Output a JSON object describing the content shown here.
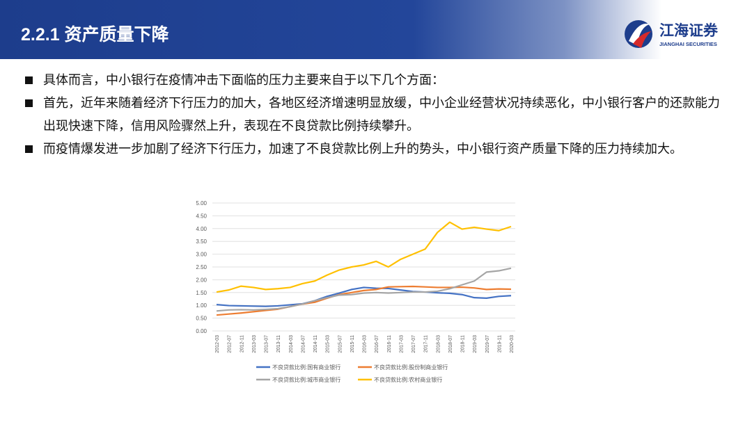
{
  "header": {
    "title": "2.2.1 资产质量下降",
    "logo_name": "江海证券",
    "logo_subtitle": "JIANGHAI SECURITIES"
  },
  "bullets": [
    "具体而言，中小银行在疫情冲击下面临的压力主要来自于以下几个方面：",
    "首先，近年来随着经济下行压力的加大，各地区经济增速明显放缓，中小企业经营状况持续恶化，中小银行客户的还款能力出现快速下降，信用风险骤然上升，表现在不良贷款比例持续攀升。",
    "而疫情爆发进一步加剧了经济下行压力，加速了不良贷款比例上升的势头，中小银行资产质量下降的压力持续加大。"
  ],
  "chart_data": {
    "type": "line",
    "categories": [
      "2012-03",
      "2012-07",
      "2012-11",
      "2013-03",
      "2013-07",
      "2013-11",
      "2014-03",
      "2014-07",
      "2014-11",
      "2015-03",
      "2015-07",
      "2015-11",
      "2016-03",
      "2016-07",
      "2016-11",
      "2017-03",
      "2017-07",
      "2017-11",
      "2018-03",
      "2018-07",
      "2018-11",
      "2019-03",
      "2019-07",
      "2019-11",
      "2020-03"
    ],
    "series": [
      {
        "name": "不良贷款比例:国有商业银行",
        "color": "#4472c4",
        "values": [
          1.03,
          0.99,
          0.98,
          0.97,
          0.96,
          0.98,
          1.02,
          1.06,
          1.18,
          1.35,
          1.48,
          1.62,
          1.7,
          1.67,
          1.66,
          1.6,
          1.54,
          1.52,
          1.49,
          1.47,
          1.42,
          1.3,
          1.28,
          1.35,
          1.38
        ]
      },
      {
        "name": "不良贷款比例:股份制商业银行",
        "color": "#ed7d31",
        "values": [
          0.62,
          0.66,
          0.7,
          0.75,
          0.8,
          0.85,
          0.95,
          1.05,
          1.12,
          1.28,
          1.42,
          1.5,
          1.58,
          1.62,
          1.72,
          1.73,
          1.74,
          1.72,
          1.7,
          1.7,
          1.71,
          1.68,
          1.62,
          1.64,
          1.63
        ]
      },
      {
        "name": "不良贷款比例:城市商业银行",
        "color": "#a5a5a5",
        "values": [
          0.78,
          0.82,
          0.83,
          0.82,
          0.84,
          0.87,
          0.95,
          1.05,
          1.18,
          1.3,
          1.4,
          1.42,
          1.48,
          1.5,
          1.48,
          1.5,
          1.52,
          1.52,
          1.55,
          1.65,
          1.8,
          1.95,
          2.3,
          2.35,
          2.45
        ]
      },
      {
        "name": "不良贷款比例:农村商业银行",
        "color": "#ffc000",
        "values": [
          1.52,
          1.6,
          1.75,
          1.7,
          1.62,
          1.65,
          1.7,
          1.85,
          1.95,
          2.18,
          2.38,
          2.5,
          2.58,
          2.72,
          2.5,
          2.8,
          3.0,
          3.2,
          3.85,
          4.25,
          3.98,
          4.05,
          3.98,
          3.92,
          4.08
        ]
      }
    ],
    "ylim": [
      0,
      5
    ],
    "yticks": [
      {
        "value": 0,
        "label": "0.00"
      },
      {
        "value": 0.5,
        "label": "0.50"
      },
      {
        "value": 1,
        "label": "1.00"
      },
      {
        "value": 1.5,
        "label": "1.50"
      },
      {
        "value": 2,
        "label": "2.00"
      },
      {
        "value": 2.5,
        "label": "2.50"
      },
      {
        "value": 3,
        "label": "3.00"
      },
      {
        "value": 3.5,
        "label": "3.50"
      },
      {
        "value": 4,
        "label": "4.00"
      },
      {
        "value": 4.5,
        "label": "4.50"
      },
      {
        "value": 5,
        "label": "5.00"
      }
    ],
    "grid": true
  }
}
